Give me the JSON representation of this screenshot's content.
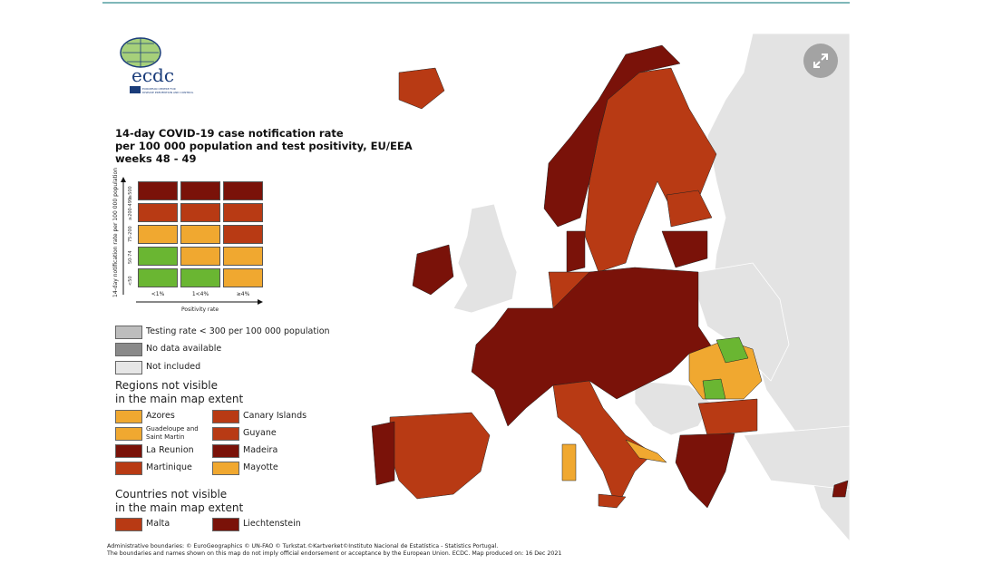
{
  "title": [
    "14-day COVID-19 case notification rate",
    "per 100 000 population and test positivity, EU/EEA",
    "weeks 48 - 49"
  ],
  "logo": {
    "text": "ecdc",
    "subtitle": "EUROPEAN CENTRE FOR DISEASE PREVENTION AND CONTROL"
  },
  "colors": {
    "dark_red": "#7a1209",
    "red": "#b83a14",
    "orange": "#f0a830",
    "green": "#6ab632",
    "testing_low": "#bdbdbd",
    "no_data": "#8a8a8a",
    "not_included": "#e6e6e6"
  },
  "matrix": {
    "y_label": "14-day notification rate per 100 000 population",
    "x_label": "Positivity rate",
    "rows": [
      "≥500",
      "≥200-499",
      "75-200",
      "50-74",
      "<50"
    ],
    "cols": [
      "<1%",
      "1<4%",
      "≥4%"
    ],
    "cells": [
      [
        "dark_red",
        "dark_red",
        "dark_red"
      ],
      [
        "red",
        "red",
        "red"
      ],
      [
        "orange",
        "orange",
        "red"
      ],
      [
        "green",
        "orange",
        "orange"
      ],
      [
        "green",
        "green",
        "orange"
      ]
    ]
  },
  "legend": {
    "testing_low": "Testing rate < 300 per 100 000 population",
    "no_data": "No data available",
    "not_included": "Not included",
    "regions_heading": [
      "Regions not visible",
      "in the main map extent"
    ],
    "regions": [
      {
        "label": "Azores",
        "color": "orange"
      },
      {
        "label": "Canary Islands",
        "color": "red"
      },
      {
        "label": "Guadeloupe and Saint Martin",
        "color": "orange"
      },
      {
        "label": "Guyane",
        "color": "red"
      },
      {
        "label": "La Reunion",
        "color": "dark_red"
      },
      {
        "label": "Madeira",
        "color": "dark_red"
      },
      {
        "label": "Martinique",
        "color": "red"
      },
      {
        "label": "Mayotte",
        "color": "orange"
      }
    ],
    "countries_heading": [
      "Countries not visible",
      "in the main map extent"
    ],
    "countries": [
      {
        "label": "Malta",
        "color": "red"
      },
      {
        "label": "Liechtenstein",
        "color": "dark_red"
      }
    ]
  },
  "footer": [
    "Administrative boundaries: © EuroGeographics © UN-FAO © Turkstat.©Kartverket©Instituto Nacional de Estatística - Statistics Portugal.",
    "The boundaries and names shown on this map do not imply official endorsement or acceptance by the European Union. ECDC. Map produced on: 16 Dec 2021"
  ],
  "expand_icon": "expand-arrows-icon"
}
